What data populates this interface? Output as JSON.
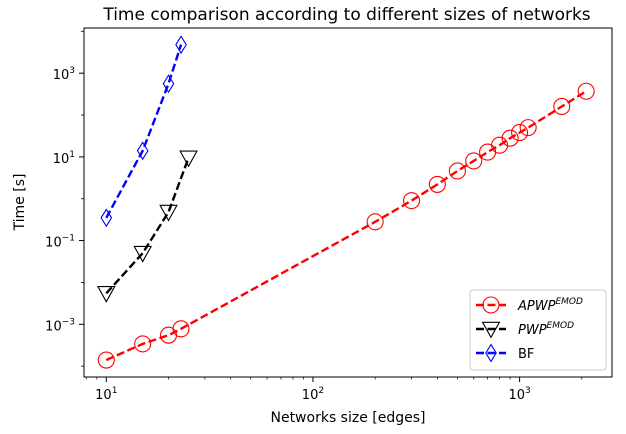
{
  "chart_data": {
    "type": "line",
    "title": "Time comparison according to different sizes of networks",
    "xlabel": "Networks size [edges]",
    "ylabel": "Time [s]",
    "xscale": "log",
    "yscale": "log",
    "xlim": [
      7.8,
      2800
    ],
    "ylim": [
      5.5e-05,
      12000
    ],
    "grid": false,
    "legend_position": "lower-right",
    "x_ticks": [
      {
        "value": 10,
        "base": "10",
        "exp": "1"
      },
      {
        "value": 100,
        "base": "10",
        "exp": "2"
      },
      {
        "value": 1000,
        "base": "10",
        "exp": "3"
      }
    ],
    "y_ticks": [
      {
        "value": 0.001,
        "base": "10",
        "exp": "−3"
      },
      {
        "value": 0.1,
        "base": "10",
        "exp": "−1"
      },
      {
        "value": 10,
        "base": "10",
        "exp": "1"
      },
      {
        "value": 1000,
        "base": "10",
        "exp": "3"
      }
    ],
    "series": [
      {
        "name": "APWP",
        "name_sup": "EMOD",
        "color": "#ff0000",
        "marker": "circle",
        "x": [
          10,
          15,
          20,
          23,
          200,
          300,
          400,
          500,
          600,
          700,
          800,
          900,
          1000,
          1100,
          1600,
          2100
        ],
        "y": [
          0.00014,
          0.00034,
          0.00055,
          0.00078,
          0.28,
          0.9,
          2.2,
          4.6,
          8,
          13,
          19,
          28,
          38,
          50,
          160,
          370
        ]
      },
      {
        "name": "PWP",
        "name_sup": "EMOD",
        "color": "#000000",
        "marker": "triangle-down",
        "x": [
          10,
          15,
          20,
          25
        ],
        "y": [
          0.0055,
          0.05,
          0.48,
          9.5
        ]
      },
      {
        "name": "BF",
        "name_sup": "",
        "color": "#0000ff",
        "marker": "thin-diamond",
        "x": [
          10,
          15,
          20,
          23
        ],
        "y": [
          0.35,
          14,
          560,
          4800
        ]
      }
    ]
  }
}
